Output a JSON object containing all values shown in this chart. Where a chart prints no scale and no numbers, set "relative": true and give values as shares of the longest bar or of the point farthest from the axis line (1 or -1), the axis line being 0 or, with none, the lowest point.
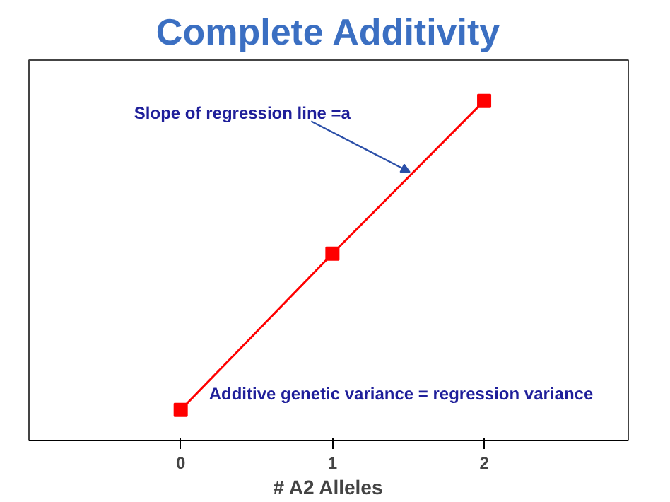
{
  "chart_data": {
    "type": "line",
    "title": "Complete Additivity",
    "xlabel": "# A2 Alleles",
    "x": [
      0,
      1,
      2
    ],
    "xlim": [
      -1,
      2.95
    ],
    "xticks": [
      0,
      1,
      2
    ],
    "relative": true,
    "tick_labels": "x",
    "marker": "square",
    "line_style": "solid",
    "grid": false,
    "series": [
      {
        "color": "#ff0000",
        "values": [
          0.09,
          0.55,
          1
        ]
      }
    ],
    "annotations": [
      {
        "text": "Slope of regression line =a",
        "x": 1.51,
        "y": 0.79
      },
      "Additive genetic variance = regression variance"
    ]
  }
}
